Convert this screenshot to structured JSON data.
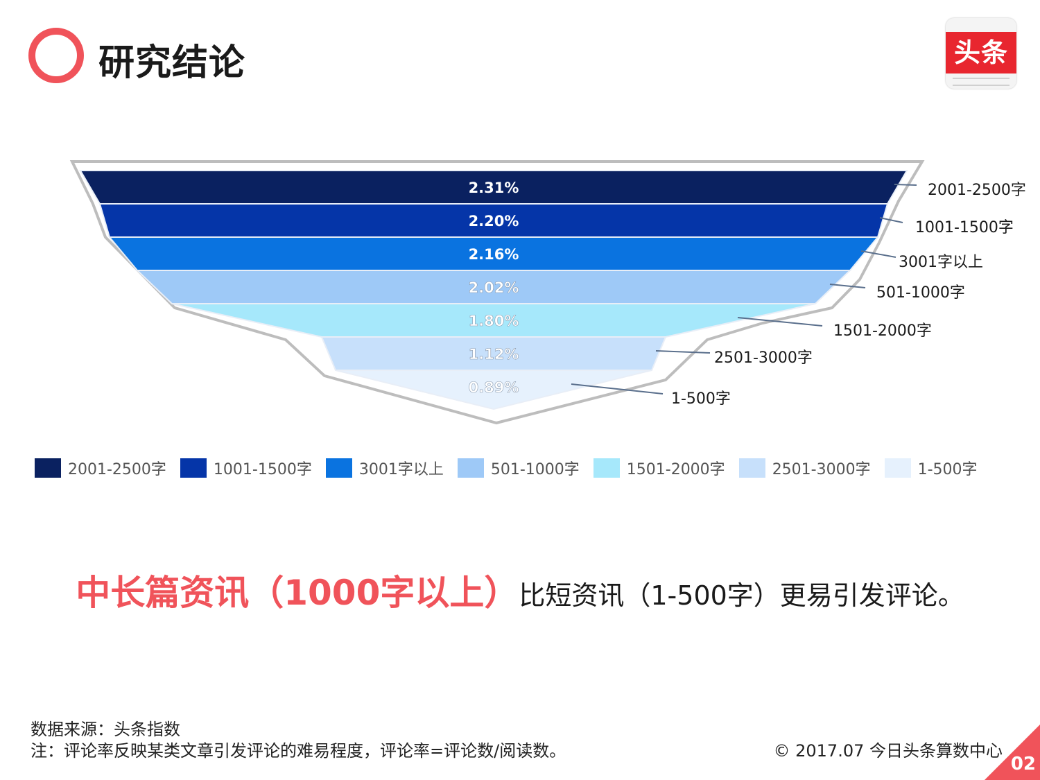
{
  "header": {
    "title": "研究结论",
    "logo_text": "头条"
  },
  "chart_data": {
    "type": "funnel",
    "categories": [
      "2001-2500字",
      "1001-1500字",
      "3001字以上",
      "501-1000字",
      "1501-2000字",
      "2501-3000字",
      "1-500字"
    ],
    "values": [
      2.31,
      2.2,
      2.16,
      2.02,
      1.8,
      1.12,
      0.89
    ],
    "value_labels": [
      "2.31%",
      "2.20%",
      "2.16%",
      "2.02%",
      "1.80%",
      "1.12%",
      "0.89%"
    ],
    "unit": "%",
    "colors": [
      "#0a2160",
      "#0535a8",
      "#0a73e0",
      "#9ec9f7",
      "#a6e8fb",
      "#c7e0fb",
      "#e6f1fd"
    ],
    "label_colors": [
      "#ffffff",
      "#ffffff",
      "#ffffff",
      "#ffffff",
      "#ffffff",
      "#ffffff",
      "#ffffff"
    ],
    "legend_position": "bottom"
  },
  "conclusion": {
    "highlight": "中长篇资讯（1000字以上）",
    "rest": "比短资讯（1-500字）更易引发评论。"
  },
  "footer": {
    "source": "数据来源：头条指数",
    "note": "注：评论率反映某类文章引发评论的难易程度，评论率=评论数/阅读数。",
    "copyright": "© 2017.07 今日头条算数中心",
    "page_number": "02"
  }
}
